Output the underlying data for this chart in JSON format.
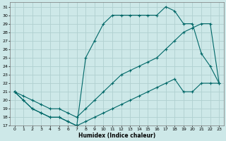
{
  "xlabel": "Humidex (Indice chaleur)",
  "xlim": [
    -0.5,
    23.5
  ],
  "ylim": [
    17,
    31.5
  ],
  "yticks": [
    17,
    18,
    19,
    20,
    21,
    22,
    23,
    24,
    25,
    26,
    27,
    28,
    29,
    30,
    31
  ],
  "xticks": [
    0,
    1,
    2,
    3,
    4,
    5,
    6,
    7,
    8,
    9,
    10,
    11,
    12,
    13,
    14,
    15,
    16,
    17,
    18,
    19,
    20,
    21,
    22,
    23
  ],
  "bg_color": "#cde8e8",
  "grid_color": "#b0d0d0",
  "line_color": "#006868",
  "line1_x": [
    0,
    1,
    2,
    3,
    4,
    5,
    6,
    7,
    8,
    9,
    10,
    11,
    12,
    13,
    14,
    15,
    16,
    17,
    18,
    19,
    20,
    21,
    22,
    23
  ],
  "line1_y": [
    21,
    20,
    19,
    18.5,
    18,
    18,
    17.5,
    17,
    25,
    27,
    29,
    30,
    30,
    30,
    30,
    30,
    30,
    31,
    30.5,
    29,
    29,
    25.5,
    24,
    22
  ],
  "line2_x": [
    0,
    1,
    2,
    3,
    4,
    5,
    6,
    7,
    8,
    9,
    10,
    11,
    12,
    13,
    14,
    15,
    16,
    17,
    18,
    19,
    20,
    21,
    22,
    23
  ],
  "line2_y": [
    21,
    20.5,
    20,
    19.5,
    19,
    19,
    18.5,
    18,
    19,
    20,
    21,
    22,
    23,
    23.5,
    24,
    24.5,
    25,
    26,
    27,
    28,
    28.5,
    29,
    29,
    22
  ],
  "line3_x": [
    0,
    1,
    2,
    3,
    4,
    5,
    6,
    7,
    8,
    9,
    10,
    11,
    12,
    13,
    14,
    15,
    16,
    17,
    18,
    19,
    20,
    21,
    22,
    23
  ],
  "line3_y": [
    21,
    20,
    19,
    18.5,
    18,
    18,
    17.5,
    17,
    17.5,
    18,
    18.5,
    19,
    19.5,
    20,
    20.5,
    21,
    21.5,
    22,
    22.5,
    21,
    21,
    22,
    22,
    22
  ],
  "marker": "+",
  "markersize": 3.5,
  "linewidth": 0.8
}
